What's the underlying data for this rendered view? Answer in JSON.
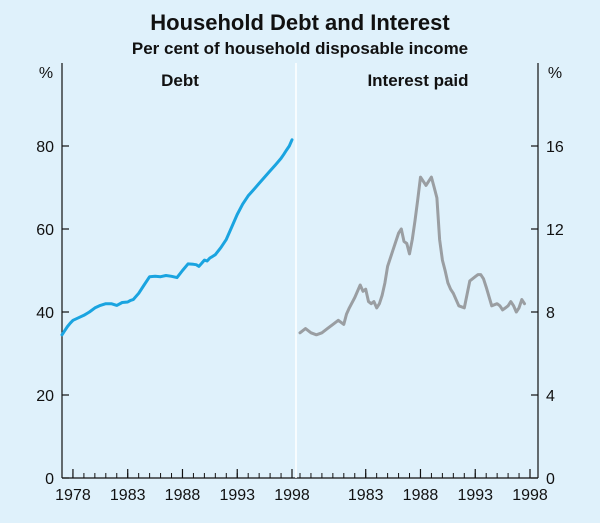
{
  "chart_data": {
    "type": "line",
    "title": "Household Debt and Interest",
    "subtitle": "Per cent of household disposable income",
    "panels": [
      {
        "label": "Debt",
        "axis": "left",
        "unit": "%",
        "yticks": [
          0,
          20,
          40,
          60,
          80
        ],
        "ylim": [
          0,
          100
        ],
        "xlim": [
          1977,
          1998
        ],
        "xticks": [
          "1978",
          "1983",
          "1988",
          "1993",
          "1998"
        ],
        "color": "#1aa4e0",
        "series": [
          {
            "x": [
              1977.0,
              1977.25,
              1977.5,
              1977.75,
              1978.0,
              1978.5,
              1979.0,
              1979.5,
              1980.0,
              1980.5,
              1981.0,
              1981.5,
              1982.0,
              1982.5,
              1983.0,
              1983.25,
              1983.5,
              1984.0,
              1984.5,
              1985.0,
              1985.5,
              1986.0,
              1986.5,
              1987.0,
              1987.5,
              1988.0,
              1988.5,
              1989.0,
              1989.25,
              1989.5,
              1989.75,
              1990.0,
              1990.25,
              1990.5,
              1990.75,
              1991.0,
              1991.5,
              1992.0,
              1992.5,
              1993.0,
              1993.5,
              1994.0,
              1994.5,
              1995.0,
              1995.5,
              1996.0,
              1996.5,
              1997.0,
              1997.25,
              1997.5,
              1997.75,
              1998.0
            ],
            "y": [
              34.5,
              35.5,
              36.5,
              37.3,
              38.0,
              38.6,
              39.2,
              40.0,
              41.0,
              41.6,
              42.0,
              42.0,
              41.6,
              42.3,
              42.4,
              42.8,
              43.0,
              44.5,
              46.5,
              48.5,
              48.6,
              48.5,
              48.8,
              48.6,
              48.3,
              50.0,
              51.6,
              51.5,
              51.4,
              51.0,
              51.7,
              52.5,
              52.3,
              53.0,
              53.4,
              53.8,
              55.5,
              57.5,
              60.5,
              63.5,
              66.0,
              68.0,
              69.5,
              71.0,
              72.5,
              74.0,
              75.5,
              77.0,
              78.0,
              79.0,
              80.0,
              81.5
            ]
          }
        ]
      },
      {
        "label": "Interest paid",
        "axis": "right",
        "unit": "%",
        "yticks": [
          0,
          4,
          8,
          12,
          16
        ],
        "ylim": [
          0,
          20
        ],
        "xlim": [
          1977,
          1998
        ],
        "xticks": [
          "1983",
          "1988",
          "1993",
          "1998"
        ],
        "color": "#9a9ea2",
        "series": [
          {
            "x": [
              1977.0,
              1977.5,
              1978.0,
              1978.5,
              1979.0,
              1979.5,
              1980.0,
              1980.5,
              1981.0,
              1981.25,
              1981.5,
              1982.0,
              1982.5,
              1982.75,
              1983.0,
              1983.25,
              1983.5,
              1983.75,
              1984.0,
              1984.25,
              1984.5,
              1984.75,
              1985.0,
              1985.5,
              1986.0,
              1986.25,
              1986.5,
              1986.75,
              1987.0,
              1987.25,
              1987.5,
              1987.75,
              1988.0,
              1988.5,
              1989.0,
              1989.25,
              1989.5,
              1989.75,
              1990.0,
              1990.25,
              1990.5,
              1990.75,
              1991.0,
              1991.5,
              1992.0,
              1992.5,
              1993.0,
              1993.25,
              1993.5,
              1993.75,
              1994.0,
              1994.5,
              1995.0,
              1995.25,
              1995.5,
              1995.75,
              1996.0,
              1996.25,
              1996.5,
              1996.75,
              1997.0,
              1997.25,
              1997.5
            ],
            "y": [
              7.0,
              7.2,
              7.0,
              6.9,
              7.0,
              7.2,
              7.4,
              7.6,
              7.4,
              7.9,
              8.2,
              8.7,
              9.3,
              9.0,
              9.1,
              8.5,
              8.4,
              8.5,
              8.2,
              8.4,
              8.8,
              9.4,
              10.2,
              11.0,
              11.8,
              12.0,
              11.4,
              11.3,
              10.8,
              11.5,
              12.4,
              13.4,
              14.5,
              14.1,
              14.5,
              14.0,
              13.5,
              11.5,
              10.5,
              10.0,
              9.4,
              9.1,
              8.9,
              8.3,
              8.2,
              9.5,
              9.7,
              9.8,
              9.8,
              9.6,
              9.2,
              8.3,
              8.4,
              8.3,
              8.1,
              8.2,
              8.3,
              8.5,
              8.3,
              8.0,
              8.2,
              8.6,
              8.4
            ]
          }
        ]
      }
    ]
  }
}
